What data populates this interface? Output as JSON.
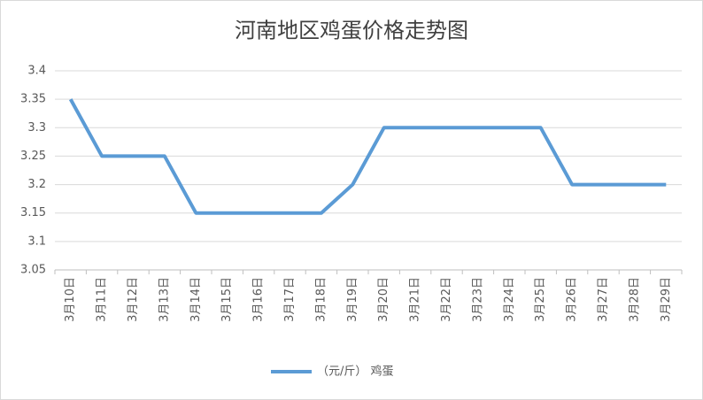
{
  "chart_data": {
    "type": "line",
    "title": "河南地区鸡蛋价格走势图",
    "categories": [
      "3月10日",
      "3月11日",
      "3月12日",
      "3月13日",
      "3月14日",
      "3月15日",
      "3月16日",
      "3月17日",
      "3月18日",
      "3月19日",
      "3月20日",
      "3月21日",
      "3月22日",
      "3月23日",
      "3月24日",
      "3月25日",
      "3月26日",
      "3月27日",
      "3月28日",
      "3月29日"
    ],
    "series": [
      {
        "name": "（元/斤） 鸡蛋",
        "color": "#5b9bd5",
        "values": [
          3.35,
          3.25,
          3.25,
          3.25,
          3.15,
          3.15,
          3.15,
          3.15,
          3.15,
          3.2,
          3.3,
          3.3,
          3.3,
          3.3,
          3.3,
          3.3,
          3.2,
          3.2,
          3.2,
          3.2
        ]
      }
    ],
    "ylim": [
      3.05,
      3.4
    ],
    "yticks": [
      3.05,
      3.1,
      3.15,
      3.2,
      3.25,
      3.3,
      3.35,
      3.4
    ],
    "grid": true,
    "legend": "bottom"
  }
}
